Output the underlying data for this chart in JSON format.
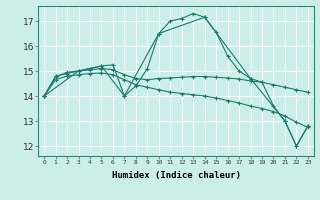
{
  "xlabel": "Humidex (Indice chaleur)",
  "background_color": "#cceee8",
  "line_color": "#1a7a6e",
  "grid_color": "#ffffff",
  "xlim": [
    -0.5,
    23.5
  ],
  "ylim": [
    11.6,
    17.6
  ],
  "yticks": [
    12,
    13,
    14,
    15,
    16,
    17
  ],
  "xticks": [
    0,
    1,
    2,
    3,
    4,
    5,
    6,
    7,
    8,
    9,
    10,
    11,
    12,
    13,
    14,
    15,
    16,
    17,
    18,
    19,
    20,
    21,
    22,
    23
  ],
  "series": [
    {
      "x": [
        0,
        1,
        2,
        3,
        4,
        5,
        6,
        7,
        8,
        9,
        10,
        11,
        12,
        13,
        14,
        15,
        16,
        17,
        18,
        19,
        20,
        21,
        22,
        23
      ],
      "y": [
        14.0,
        14.8,
        14.9,
        15.0,
        15.1,
        15.2,
        15.25,
        14.0,
        14.4,
        15.1,
        16.5,
        17.0,
        17.1,
        17.3,
        17.15,
        16.55,
        15.6,
        15.0,
        14.7,
        14.55,
        13.6,
        13.0,
        12.0,
        12.8
      ]
    },
    {
      "x": [
        0,
        1,
        2,
        3,
        4,
        5,
        6,
        7,
        8,
        9,
        10,
        11,
        12,
        13,
        14,
        15,
        16,
        17,
        18,
        19,
        20,
        21,
        22,
        23
      ],
      "y": [
        14.0,
        14.75,
        14.95,
        15.0,
        15.05,
        15.1,
        15.05,
        14.85,
        14.7,
        14.65,
        14.7,
        14.72,
        14.75,
        14.78,
        14.78,
        14.75,
        14.72,
        14.68,
        14.6,
        14.55,
        14.45,
        14.35,
        14.25,
        14.15
      ]
    },
    {
      "x": [
        0,
        3,
        5,
        7,
        10,
        14,
        18,
        21,
        22,
        23
      ],
      "y": [
        14.0,
        15.0,
        15.2,
        14.0,
        16.5,
        17.15,
        14.7,
        13.0,
        12.0,
        12.8
      ]
    },
    {
      "x": [
        0,
        1,
        2,
        3,
        4,
        5,
        6,
        7,
        8,
        9,
        10,
        11,
        12,
        13,
        14,
        15,
        16,
        17,
        18,
        19,
        20,
        21,
        22,
        23
      ],
      "y": [
        14.0,
        14.65,
        14.8,
        14.85,
        14.9,
        14.92,
        14.85,
        14.65,
        14.45,
        14.35,
        14.25,
        14.15,
        14.1,
        14.05,
        14.0,
        13.92,
        13.82,
        13.72,
        13.6,
        13.5,
        13.38,
        13.2,
        12.95,
        12.75
      ]
    }
  ]
}
